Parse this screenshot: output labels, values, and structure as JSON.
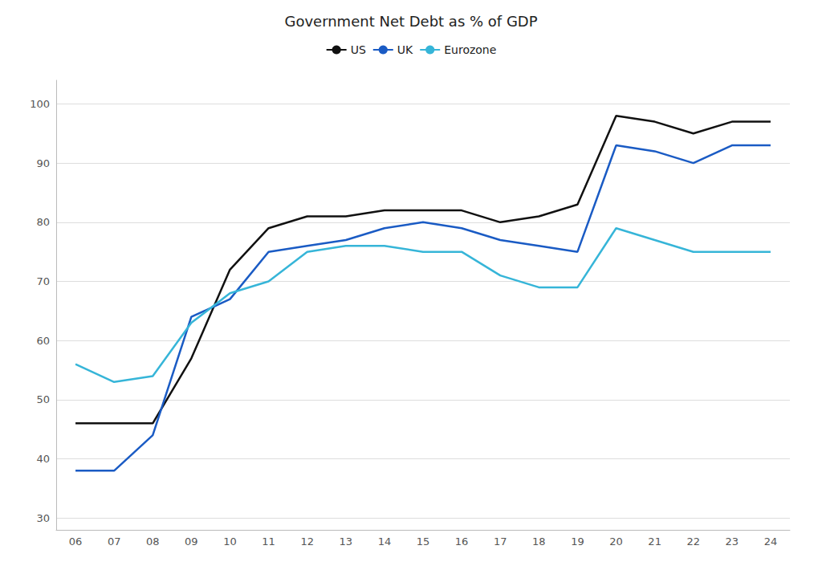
{
  "chart_data": {
    "type": "line",
    "title": "Government Net Debt as % of GDP",
    "categories": [
      "06",
      "07",
      "08",
      "09",
      "10",
      "11",
      "12",
      "13",
      "14",
      "15",
      "16",
      "17",
      "18",
      "19",
      "20",
      "21",
      "22",
      "23",
      "24"
    ],
    "series": [
      {
        "name": "US",
        "color": "#111111",
        "values": [
          46,
          46,
          46,
          57,
          72,
          79,
          81,
          81,
          82,
          82,
          82,
          80,
          81,
          83,
          98,
          97,
          95,
          97,
          97
        ]
      },
      {
        "name": "UK",
        "color": "#1a5bc4",
        "values": [
          38,
          38,
          44,
          64,
          67,
          75,
          76,
          77,
          79,
          80,
          79,
          77,
          76,
          75,
          93,
          92,
          90,
          93,
          93
        ]
      },
      {
        "name": "Eurozone",
        "color": "#36b5d8",
        "values": [
          56,
          53,
          54,
          63,
          68,
          70,
          75,
          76,
          76,
          75,
          75,
          71,
          69,
          69,
          79,
          77,
          75,
          75,
          75
        ]
      }
    ],
    "ylim": [
      28,
      104
    ],
    "yticks": [
      30,
      40,
      50,
      60,
      70,
      80,
      90,
      100
    ],
    "grid": true,
    "legend": "top"
  }
}
